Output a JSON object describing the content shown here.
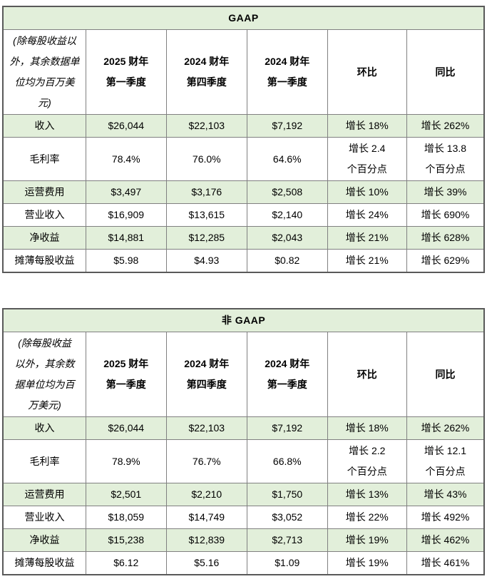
{
  "colors": {
    "row_shade": "#e2efda",
    "border_inner": "#808080",
    "border_outer": "#595959",
    "text": "#000000",
    "background": "#ffffff"
  },
  "tables": [
    {
      "id": "gaap",
      "title": "GAAP",
      "unit_note": "(除每股收益以\n外，其余数据单\n位均为百万美\n元)",
      "columns": [
        "2025 财年\n第一季度",
        "2024 财年\n第四季度",
        "2024 财年\n第一季度",
        "环比",
        "同比"
      ],
      "rows": [
        {
          "label": "收入",
          "shaded": true,
          "values": [
            "$26,044",
            "$22,103",
            "$7,192",
            "增长 18%",
            "增长 262%"
          ]
        },
        {
          "label": "毛利率",
          "shaded": false,
          "values": [
            "78.4%",
            "76.0%",
            "64.6%",
            "增长 2.4\n个百分点",
            "增长 13.8\n个百分点"
          ]
        },
        {
          "label": "运营费用",
          "shaded": true,
          "values": [
            "$3,497",
            "$3,176",
            "$2,508",
            "增长 10%",
            "增长 39%"
          ]
        },
        {
          "label": "营业收入",
          "shaded": false,
          "values": [
            "$16,909",
            "$13,615",
            "$2,140",
            "增长 24%",
            "增长 690%"
          ]
        },
        {
          "label": "净收益",
          "shaded": true,
          "values": [
            "$14,881",
            "$12,285",
            "$2,043",
            "增长 21%",
            "增长 628%"
          ]
        },
        {
          "label": "摊薄每股收益",
          "shaded": false,
          "values": [
            "$5.98",
            "$4.93",
            "$0.82",
            "增长 21%",
            "增长 629%"
          ]
        }
      ]
    },
    {
      "id": "non-gaap",
      "title": "非 GAAP",
      "unit_note": "(除每股收益\n以外，其余数\n据单位均为百\n万美元)",
      "columns": [
        "2025 财年\n第一季度",
        "2024 财年\n第四季度",
        "2024 财年\n第一季度",
        "环比",
        "同比"
      ],
      "rows": [
        {
          "label": "收入",
          "shaded": true,
          "values": [
            "$26,044",
            "$22,103",
            "$7,192",
            "增长 18%",
            "增长 262%"
          ]
        },
        {
          "label": "毛利率",
          "shaded": false,
          "values": [
            "78.9%",
            "76.7%",
            "66.8%",
            "增长 2.2\n个百分点",
            "增长 12.1\n个百分点"
          ]
        },
        {
          "label": "运营费用",
          "shaded": true,
          "values": [
            "$2,501",
            "$2,210",
            "$1,750",
            "增长 13%",
            "增长 43%"
          ]
        },
        {
          "label": "营业收入",
          "shaded": false,
          "values": [
            "$18,059",
            "$14,749",
            "$3,052",
            "增长 22%",
            "增长 492%"
          ]
        },
        {
          "label": "净收益",
          "shaded": true,
          "values": [
            "$15,238",
            "$12,839",
            "$2,713",
            "增长 19%",
            "增长 462%"
          ]
        },
        {
          "label": "摊薄每股收益",
          "shaded": false,
          "values": [
            "$6.12",
            "$5.16",
            "$1.09",
            "增长 19%",
            "增长 461%"
          ]
        }
      ]
    }
  ]
}
